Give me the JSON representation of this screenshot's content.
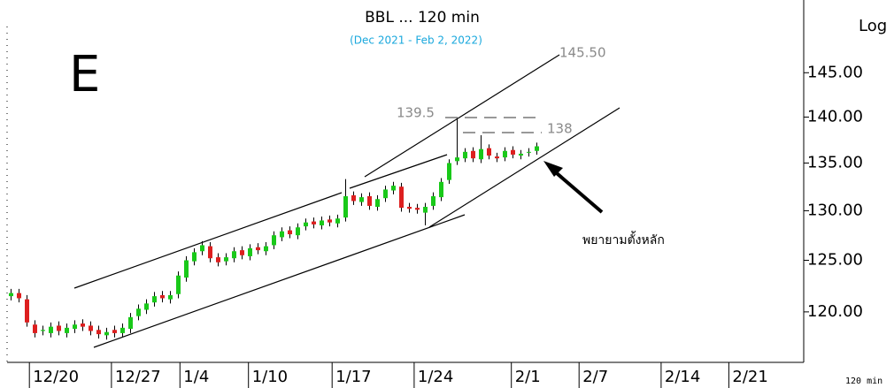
{
  "chart_data": {
    "type": "candlestick",
    "title": "BBL ... 120 min",
    "subtitle": "(Dec 2021 - Feb 2, 2022)",
    "annotations": {
      "letter": "E",
      "target": "145.50",
      "high": "139.5",
      "level": "138",
      "note": "พยายามตั้งหลัก",
      "scale": "Log",
      "interval": "120 min"
    },
    "x": [
      0.5,
      1.5,
      2.5,
      3.5,
      4.5,
      5.5,
      6.5,
      7.5,
      8.5,
      9.5,
      10.5,
      11.5,
      12.5,
      13.5,
      14.5,
      15.5,
      16.5,
      17.5,
      18.5,
      19.5,
      20.5,
      21.5,
      22.5,
      23.5,
      24.5,
      25.5,
      26.5,
      27.5,
      28.5,
      29.5,
      30.5,
      31.5,
      32.5,
      33.5,
      34.5,
      35.5,
      36.5,
      37.5,
      38.5,
      39.5,
      40.5,
      41.5,
      42.5,
      43.5,
      44.5,
      45.5,
      46.5,
      47.5,
      48.5,
      49.5,
      50.5,
      51.5,
      52.5,
      53.5,
      54.5,
      55.5,
      56.5,
      57.5,
      58.5,
      59.5,
      60.5,
      61.5,
      62.5,
      63.5,
      64.5,
      65.5,
      66.5
    ],
    "open": [
      121.5,
      121.8,
      121.2,
      118.8,
      118.2,
      118.0,
      118.7,
      118.0,
      118.4,
      118.9,
      118.7,
      118.3,
      117.8,
      118.3,
      118.0,
      118.4,
      119.6,
      120.2,
      120.9,
      121.6,
      121.2,
      121.7,
      123.3,
      124.9,
      125.9,
      126.4,
      125.3,
      124.9,
      125.2,
      126.0,
      125.4,
      126.3,
      125.9,
      126.5,
      127.3,
      128.0,
      127.5,
      128.4,
      128.9,
      128.5,
      129.1,
      128.7,
      129.3,
      131.6,
      130.9,
      131.5,
      130.4,
      131.3,
      132.1,
      132.5,
      130.4,
      130.3,
      129.8,
      130.5,
      131.4,
      133.2,
      135.2,
      135.5,
      136.3,
      135.4,
      136.6,
      135.7,
      135.6,
      136.4,
      135.8,
      136.1,
      136.3
    ],
    "high": [
      122.2,
      122.2,
      121.6,
      119.2,
      118.7,
      119.0,
      119.1,
      118.9,
      119.2,
      119.3,
      119.1,
      118.7,
      118.5,
      118.7,
      118.9,
      119.9,
      120.7,
      121.2,
      121.9,
      122.0,
      122.0,
      123.9,
      125.4,
      126.2,
      126.9,
      126.8,
      125.7,
      125.7,
      126.3,
      126.4,
      126.6,
      126.7,
      126.8,
      127.9,
      128.3,
      128.4,
      128.7,
      129.2,
      129.3,
      129.4,
      129.5,
      129.6,
      133.3,
      132.0,
      131.8,
      131.9,
      131.6,
      132.6,
      133.0,
      132.9,
      130.8,
      130.7,
      130.8,
      131.9,
      133.4,
      135.4,
      139.8,
      136.6,
      136.7,
      138.0,
      137.0,
      136.1,
      136.7,
      136.8,
      136.4,
      136.6,
      137.2
    ],
    "low": [
      121.1,
      120.9,
      118.6,
      117.6,
      117.8,
      117.6,
      117.8,
      117.6,
      118.0,
      118.2,
      117.8,
      117.5,
      117.4,
      117.6,
      117.6,
      118.0,
      119.2,
      119.8,
      120.5,
      120.9,
      120.8,
      121.3,
      122.9,
      124.5,
      125.5,
      124.8,
      124.4,
      124.5,
      124.8,
      125.1,
      125.0,
      125.6,
      125.5,
      126.1,
      126.9,
      127.2,
      127.1,
      128.0,
      128.2,
      128.1,
      128.4,
      128.3,
      128.9,
      130.6,
      130.5,
      130.1,
      130.0,
      130.9,
      131.7,
      129.9,
      129.8,
      129.7,
      128.5,
      130.1,
      131.0,
      132.8,
      134.8,
      135.1,
      135.1,
      135.0,
      135.4,
      135.1,
      135.2,
      135.5,
      135.4,
      135.7,
      135.9
    ],
    "close": [
      121.8,
      121.3,
      119,
      118,
      118.3,
      118.6,
      118.2,
      118.5,
      118.8,
      118.6,
      118.2,
      117.9,
      118.1,
      118.0,
      118.5,
      119.5,
      120.3,
      120.8,
      121.5,
      121.3,
      121.6,
      123.5,
      125,
      125.8,
      126.5,
      125.2,
      124.8,
      125.3,
      125.9,
      125.5,
      126.2,
      126.0,
      126.4,
      127.5,
      127.9,
      127.6,
      128.3,
      128.8,
      128.6,
      129,
      128.8,
      129.2,
      131.5,
      131,
      131.4,
      130.5,
      131.2,
      132.2,
      132.6,
      130.3,
      130.2,
      130.1,
      130.4,
      131.5,
      133,
      135,
      135.6,
      136.2,
      135.5,
      136.5,
      135.8,
      135.5,
      136.3,
      135.9,
      136,
      136.2,
      136.8
    ],
    "up_color": "#19c919",
    "down_color": "#dd1f1f",
    "xlim": [
      0,
      100
    ],
    "xticks": [
      {
        "value": 2.8,
        "label": "12/20"
      },
      {
        "value": 13.1,
        "label": "12/27"
      },
      {
        "value": 21.7,
        "label": "1/4"
      },
      {
        "value": 30.3,
        "label": "1/10"
      },
      {
        "value": 40.8,
        "label": "1/17"
      },
      {
        "value": 51.1,
        "label": "1/24"
      },
      {
        "value": 63.3,
        "label": "2/1"
      },
      {
        "value": 71.8,
        "label": "2/7"
      },
      {
        "value": 82.1,
        "label": "2/14"
      },
      {
        "value": 90.6,
        "label": "2/21"
      }
    ],
    "ylim": [
      115.3,
      150.4
    ],
    "log_scale": true,
    "yticks": [
      {
        "value": 120,
        "label": "120.00"
      },
      {
        "value": 125,
        "label": "125.00"
      },
      {
        "value": 130,
        "label": "130.00"
      },
      {
        "value": 135,
        "label": "135.00"
      },
      {
        "value": 140,
        "label": "140.00"
      },
      {
        "value": 145,
        "label": "145.00"
      }
    ]
  }
}
